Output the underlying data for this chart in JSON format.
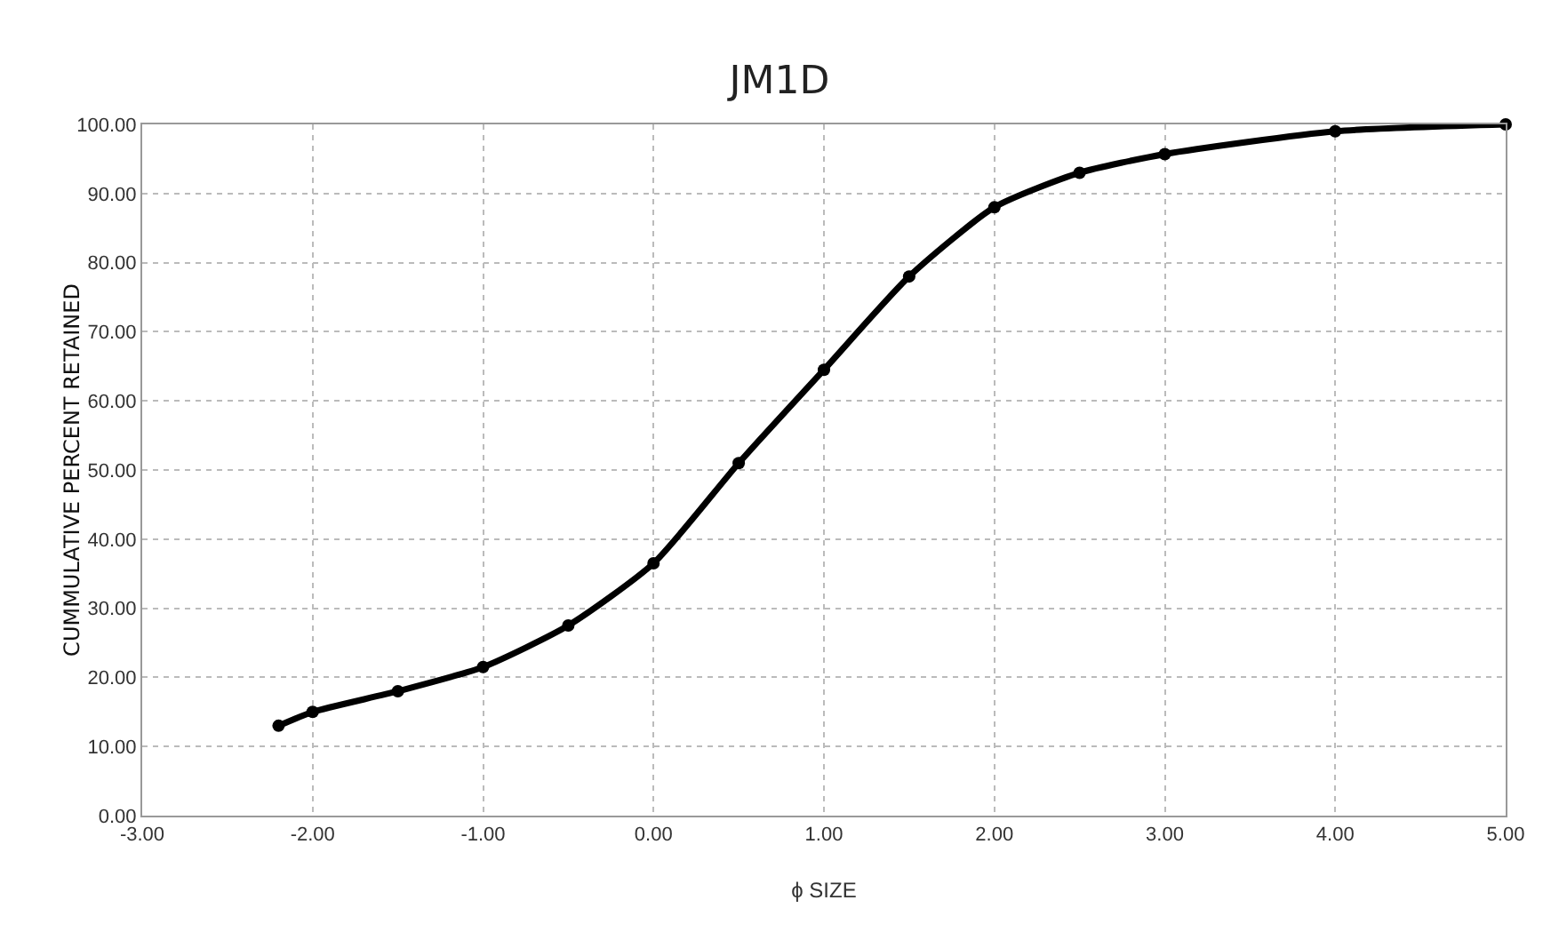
{
  "chart_data": {
    "type": "line",
    "title": "JM1D",
    "xlabel": "ϕ SIZE",
    "ylabel": "CUMMULATIVE PERCENT RETAINED",
    "x": [
      -2.2,
      -2,
      -1.5,
      -1,
      -0.5,
      0,
      0.5,
      1,
      1.5,
      2,
      2.5,
      3,
      4,
      5
    ],
    "series": [
      {
        "color": "#000000",
        "values": [
          13,
          15,
          18,
          21.5,
          27.5,
          36.5,
          51,
          64.5,
          78,
          88,
          93,
          95.7,
          99,
          100
        ]
      }
    ],
    "xlim": [
      -3,
      5
    ],
    "xticks": [
      {
        "value": -3,
        "label": "-3.00"
      },
      {
        "value": -2,
        "label": "-2.00"
      },
      {
        "value": -1,
        "label": "-1.00"
      },
      {
        "value": 0,
        "label": "0.00"
      },
      {
        "value": 1,
        "label": "1.00"
      },
      {
        "value": 2,
        "label": "2.00"
      },
      {
        "value": 3,
        "label": "3.00"
      },
      {
        "value": 4,
        "label": "4.00"
      },
      {
        "value": 5,
        "label": "5.00"
      }
    ],
    "ylim": [
      0,
      100
    ],
    "yticks": [
      {
        "value": 0,
        "label": "0.00"
      },
      {
        "value": 10,
        "label": "10.00"
      },
      {
        "value": 20,
        "label": "20.00"
      },
      {
        "value": 30,
        "label": "30.00"
      },
      {
        "value": 40,
        "label": "40.00"
      },
      {
        "value": 50,
        "label": "50.00"
      },
      {
        "value": 60,
        "label": "60.00"
      },
      {
        "value": 70,
        "label": "70.00"
      },
      {
        "value": 80,
        "label": "80.00"
      },
      {
        "value": 90,
        "label": "90.00"
      },
      {
        "value": 100,
        "label": "100.00"
      }
    ],
    "grid": true,
    "marker": "circle",
    "line_style": "solid"
  }
}
